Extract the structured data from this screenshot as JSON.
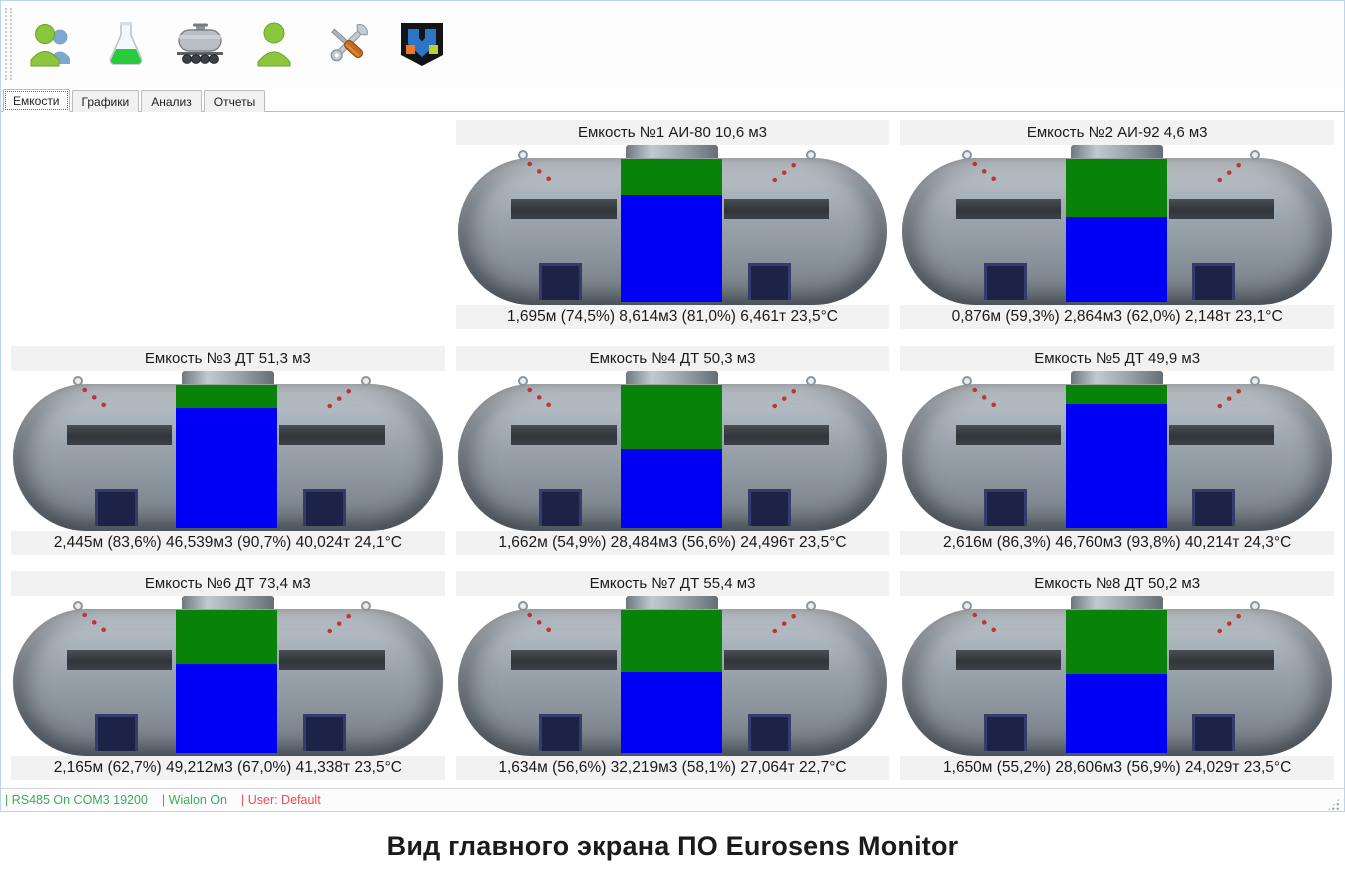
{
  "toolbar": {
    "icons": [
      {
        "name": "users-icon",
        "meaning": "clients"
      },
      {
        "name": "flask-icon",
        "meaning": "fuel-quality"
      },
      {
        "name": "tank-wagon-icon",
        "meaning": "tanker"
      },
      {
        "name": "user-icon",
        "meaning": "operator"
      },
      {
        "name": "tools-icon",
        "meaning": "settings"
      },
      {
        "name": "mechatronics-logo-icon",
        "meaning": "about"
      }
    ]
  },
  "tabs": [
    {
      "label": "Емкости",
      "active": true
    },
    {
      "label": "Графики",
      "active": false
    },
    {
      "label": "Анализ",
      "active": false
    },
    {
      "label": "Отчеты",
      "active": false
    }
  ],
  "tanks": [
    {
      "title": "Емкость №1 АИ-80 10,6 м3",
      "info": "1,695м (74,5%) 8,614м3 (81,0%) 6,461т 23,5°C",
      "level_percent": 74.5
    },
    {
      "title": "Емкость №2 АИ-92 4,6 м3",
      "info": "0,876м (59,3%) 2,864м3 (62,0%) 2,148т 23,1°C",
      "level_percent": 59.3
    },
    {
      "title": "Емкость №3 ДТ 51,3 м3",
      "info": "2,445м (83,6%) 46,539м3 (90,7%) 40,024т 24,1°C",
      "level_percent": 83.6
    },
    {
      "title": "Емкость №4 ДТ 50,3 м3",
      "info": "1,662м (54,9%) 28,484м3 (56,6%) 24,496т 23,5°C",
      "level_percent": 54.9
    },
    {
      "title": "Емкость №5 ДТ 49,9 м3",
      "info": "2,616м (86,3%) 46,760м3 (93,8%) 40,214т 24,3°C",
      "level_percent": 86.3
    },
    {
      "title": "Емкость №6 ДТ 73,4 м3",
      "info": "2,165м (62,7%) 49,212м3 (67,0%) 41,338т 23,5°C",
      "level_percent": 62.7
    },
    {
      "title": "Емкость №7 ДТ 55,4 м3",
      "info": "1,634м (56,6%) 32,219м3 (58,1%) 27,064т 22,7°C",
      "level_percent": 56.6
    },
    {
      "title": "Емкость №8 ДТ 50,2 м3",
      "info": "1,650м (55,2%) 28,606м3 (56,9%) 24,029т 23,5°C",
      "level_percent": 55.2
    }
  ],
  "statusbar": {
    "items": [
      {
        "text": "| RS485 On COM3 19200",
        "color": "#3cab5a"
      },
      {
        "text": "| Wialon On",
        "color": "#3cab5a"
      },
      {
        "text": "| User: Default",
        "color": "#ee4b52"
      }
    ]
  },
  "caption": "Вид главного экрана ПО Eurosens Monitor",
  "colors": {
    "fill_green": "#098209",
    "fill_blue": "#0000f5",
    "status_green": "#3cab5a",
    "status_red": "#ee4b52"
  }
}
